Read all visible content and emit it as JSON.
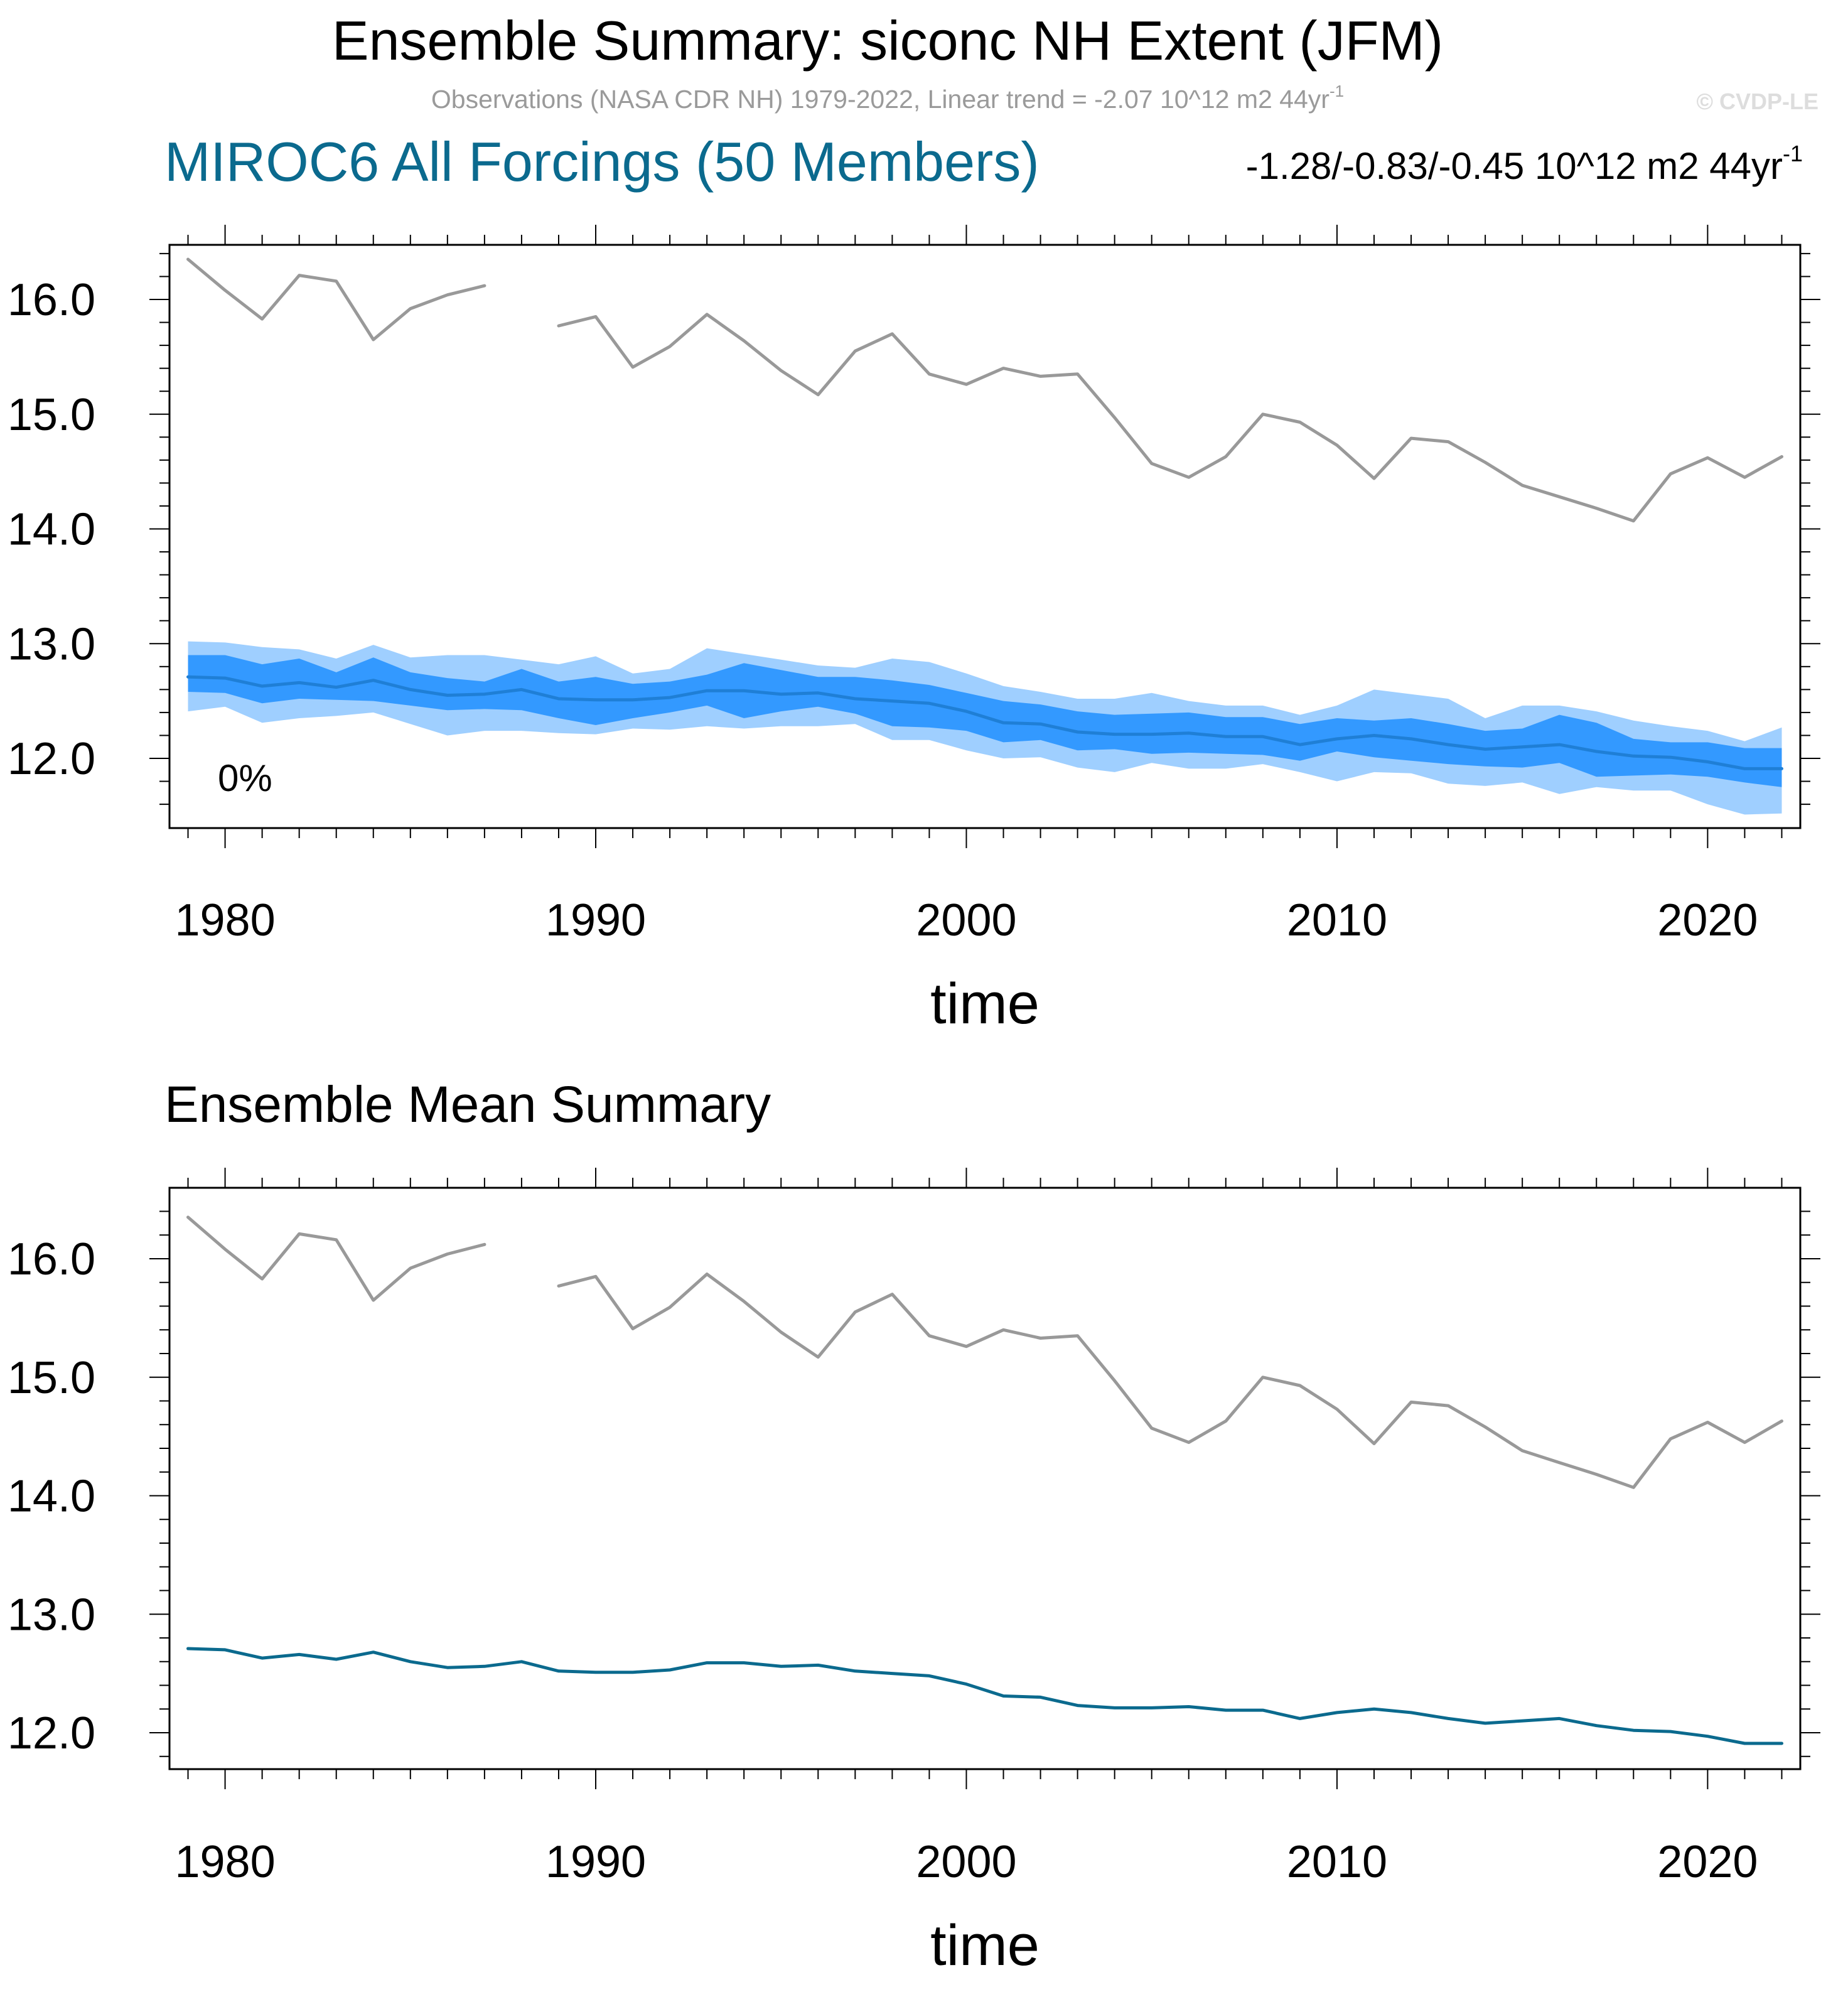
{
  "header": {
    "title": "Ensemble Summary: siconc NH Extent (JFM)",
    "obs_line": "Observations (NASA CDR NH) 1979-2022, Linear trend = -2.07 10^12 m2 44yr",
    "obs_line_sup": "-1",
    "watermark": "© CVDP-LE",
    "model_title": "MIROC6 All Forcings (50 Members)",
    "model_trend": "-1.28/-0.83/-0.45 10^12 m2 44yr",
    "model_trend_sup": "-1",
    "second_title": "Ensemble Mean Summary"
  },
  "colors": {
    "obs": "#999999",
    "ens_mean": "#0b6a8e",
    "range_outer": "#9fcfff",
    "range_inner": "#3399ff",
    "median_line": "#1f7fd6",
    "model_title": "#0b6a8e",
    "watermark": "#dddddd",
    "obs_line_text": "#9a9a9a"
  },
  "chart_data": [
    {
      "type": "line",
      "title": "Ensemble Summary: siconc NH Extent (JFM)",
      "subtitle": "MIROC6 All Forcings (50 Members)",
      "xlabel": "time",
      "ylabel": "",
      "xlim": [
        1978.5,
        2022.5
      ],
      "ylim": [
        11.5,
        16.5
      ],
      "x_ticks": [
        1980,
        1990,
        2000,
        2010,
        2020
      ],
      "y_ticks": [
        12.0,
        13.0,
        14.0,
        15.0,
        16.0
      ],
      "y_tick_labels": [
        "12.0",
        "13.0",
        "14.0",
        "15.0",
        "16.0"
      ],
      "annotation": "0%",
      "grid": false,
      "x": [
        1979,
        1980,
        1981,
        1982,
        1983,
        1984,
        1985,
        1986,
        1987,
        1988,
        1989,
        1990,
        1991,
        1992,
        1993,
        1994,
        1995,
        1996,
        1997,
        1998,
        1999,
        2000,
        2001,
        2002,
        2003,
        2004,
        2005,
        2006,
        2007,
        2008,
        2009,
        2010,
        2011,
        2012,
        2013,
        2014,
        2015,
        2016,
        2017,
        2018,
        2019,
        2020,
        2021,
        2022
      ],
      "series": [
        {
          "name": "Observations (NASA CDR NH)",
          "role": "obs",
          "values": [
            16.35,
            16.08,
            15.83,
            16.21,
            16.16,
            15.65,
            15.92,
            16.04,
            16.12,
            null,
            15.77,
            15.85,
            15.41,
            15.59,
            15.87,
            15.64,
            15.38,
            15.17,
            15.55,
            15.7,
            15.35,
            15.26,
            15.4,
            15.33,
            15.35,
            14.97,
            14.57,
            14.45,
            14.63,
            15.0,
            14.93,
            14.73,
            14.44,
            14.79,
            14.76,
            14.58,
            14.38,
            14.28,
            14.18,
            14.07,
            14.48,
            14.62,
            14.45,
            14.63
          ]
        },
        {
          "name": "range_max",
          "role": "band_outer_top",
          "values": [
            13.02,
            13.01,
            12.97,
            12.95,
            12.87,
            12.99,
            12.88,
            12.9,
            12.9,
            12.86,
            12.82,
            12.89,
            12.74,
            12.78,
            12.96,
            12.91,
            12.86,
            12.81,
            12.79,
            12.87,
            12.84,
            12.74,
            12.63,
            12.58,
            12.52,
            12.52,
            12.57,
            12.5,
            12.46,
            12.46,
            12.38,
            12.46,
            12.6,
            12.56,
            12.52,
            12.35,
            12.46,
            12.46,
            12.41,
            12.33,
            12.28,
            12.24,
            12.15,
            12.27
          ]
        },
        {
          "name": "p75",
          "role": "band_inner_top",
          "values": [
            12.9,
            12.9,
            12.82,
            12.87,
            12.75,
            12.88,
            12.75,
            12.7,
            12.67,
            12.78,
            12.67,
            12.71,
            12.65,
            12.67,
            12.73,
            12.83,
            12.77,
            12.71,
            12.71,
            12.68,
            12.64,
            12.57,
            12.5,
            12.47,
            12.41,
            12.38,
            12.39,
            12.4,
            12.36,
            12.36,
            12.3,
            12.35,
            12.33,
            12.35,
            12.3,
            12.24,
            12.26,
            12.38,
            12.31,
            12.17,
            12.14,
            12.14,
            12.09,
            12.09
          ]
        },
        {
          "name": "Ensemble mean",
          "role": "mean",
          "values": [
            12.71,
            12.7,
            12.63,
            12.66,
            12.62,
            12.68,
            12.6,
            12.55,
            12.56,
            12.6,
            12.52,
            12.51,
            12.51,
            12.53,
            12.59,
            12.59,
            12.56,
            12.57,
            12.52,
            12.5,
            12.48,
            12.41,
            12.31,
            12.3,
            12.23,
            12.21,
            12.21,
            12.22,
            12.19,
            12.19,
            12.12,
            12.17,
            12.2,
            12.17,
            12.12,
            12.08,
            12.1,
            12.12,
            12.06,
            12.02,
            12.01,
            11.97,
            11.91,
            11.91
          ]
        },
        {
          "name": "p25",
          "role": "band_inner_bottom",
          "values": [
            12.58,
            12.57,
            12.48,
            12.52,
            12.51,
            12.5,
            12.46,
            12.42,
            12.43,
            12.42,
            12.35,
            12.29,
            12.35,
            12.4,
            12.46,
            12.35,
            12.41,
            12.45,
            12.39,
            12.28,
            12.27,
            12.24,
            12.14,
            12.16,
            12.07,
            12.08,
            12.04,
            12.05,
            12.04,
            12.03,
            11.98,
            12.06,
            12.01,
            11.98,
            11.95,
            11.93,
            11.92,
            11.96,
            11.84,
            11.85,
            11.86,
            11.84,
            11.79,
            11.75
          ]
        },
        {
          "name": "range_min",
          "role": "band_outer_bottom",
          "values": [
            12.41,
            12.45,
            12.31,
            12.35,
            12.37,
            12.4,
            12.3,
            12.2,
            12.24,
            12.24,
            12.22,
            12.21,
            12.26,
            12.25,
            12.28,
            12.26,
            12.28,
            12.28,
            12.3,
            12.16,
            12.16,
            12.07,
            12.0,
            12.01,
            11.92,
            11.88,
            11.96,
            11.91,
            11.91,
            11.95,
            11.88,
            11.8,
            11.88,
            11.87,
            11.78,
            11.76,
            11.79,
            11.69,
            11.75,
            11.72,
            11.72,
            11.6,
            11.51,
            11.52
          ]
        }
      ]
    },
    {
      "type": "line",
      "title": "Ensemble Mean Summary",
      "xlabel": "time",
      "ylabel": "",
      "xlim": [
        1978.5,
        2022.5
      ],
      "ylim": [
        11.7,
        16.6
      ],
      "x_ticks": [
        1980,
        1990,
        2000,
        2010,
        2020
      ],
      "y_ticks": [
        12.0,
        13.0,
        14.0,
        15.0,
        16.0
      ],
      "y_tick_labels": [
        "12.0",
        "13.0",
        "14.0",
        "15.0",
        "16.0"
      ],
      "grid": false,
      "x": [
        1979,
        1980,
        1981,
        1982,
        1983,
        1984,
        1985,
        1986,
        1987,
        1988,
        1989,
        1990,
        1991,
        1992,
        1993,
        1994,
        1995,
        1996,
        1997,
        1998,
        1999,
        2000,
        2001,
        2002,
        2003,
        2004,
        2005,
        2006,
        2007,
        2008,
        2009,
        2010,
        2011,
        2012,
        2013,
        2014,
        2015,
        2016,
        2017,
        2018,
        2019,
        2020,
        2021,
        2022
      ],
      "series": [
        {
          "name": "Observations (NASA CDR NH)",
          "role": "obs",
          "values": [
            16.35,
            16.08,
            15.83,
            16.21,
            16.16,
            15.65,
            15.92,
            16.04,
            16.12,
            null,
            15.77,
            15.85,
            15.41,
            15.59,
            15.87,
            15.64,
            15.38,
            15.17,
            15.55,
            15.7,
            15.35,
            15.26,
            15.4,
            15.33,
            15.35,
            14.97,
            14.57,
            14.45,
            14.63,
            15.0,
            14.93,
            14.73,
            14.44,
            14.79,
            14.76,
            14.58,
            14.38,
            14.28,
            14.18,
            14.07,
            14.48,
            14.62,
            14.45,
            14.63
          ]
        },
        {
          "name": "Ensemble mean",
          "role": "mean",
          "values": [
            12.71,
            12.7,
            12.63,
            12.66,
            12.62,
            12.68,
            12.6,
            12.55,
            12.56,
            12.6,
            12.52,
            12.51,
            12.51,
            12.53,
            12.59,
            12.59,
            12.56,
            12.57,
            12.52,
            12.5,
            12.48,
            12.41,
            12.31,
            12.3,
            12.23,
            12.21,
            12.21,
            12.22,
            12.19,
            12.19,
            12.12,
            12.17,
            12.2,
            12.17,
            12.12,
            12.08,
            12.1,
            12.12,
            12.06,
            12.02,
            12.01,
            11.97,
            11.91,
            11.91
          ]
        }
      ]
    }
  ]
}
